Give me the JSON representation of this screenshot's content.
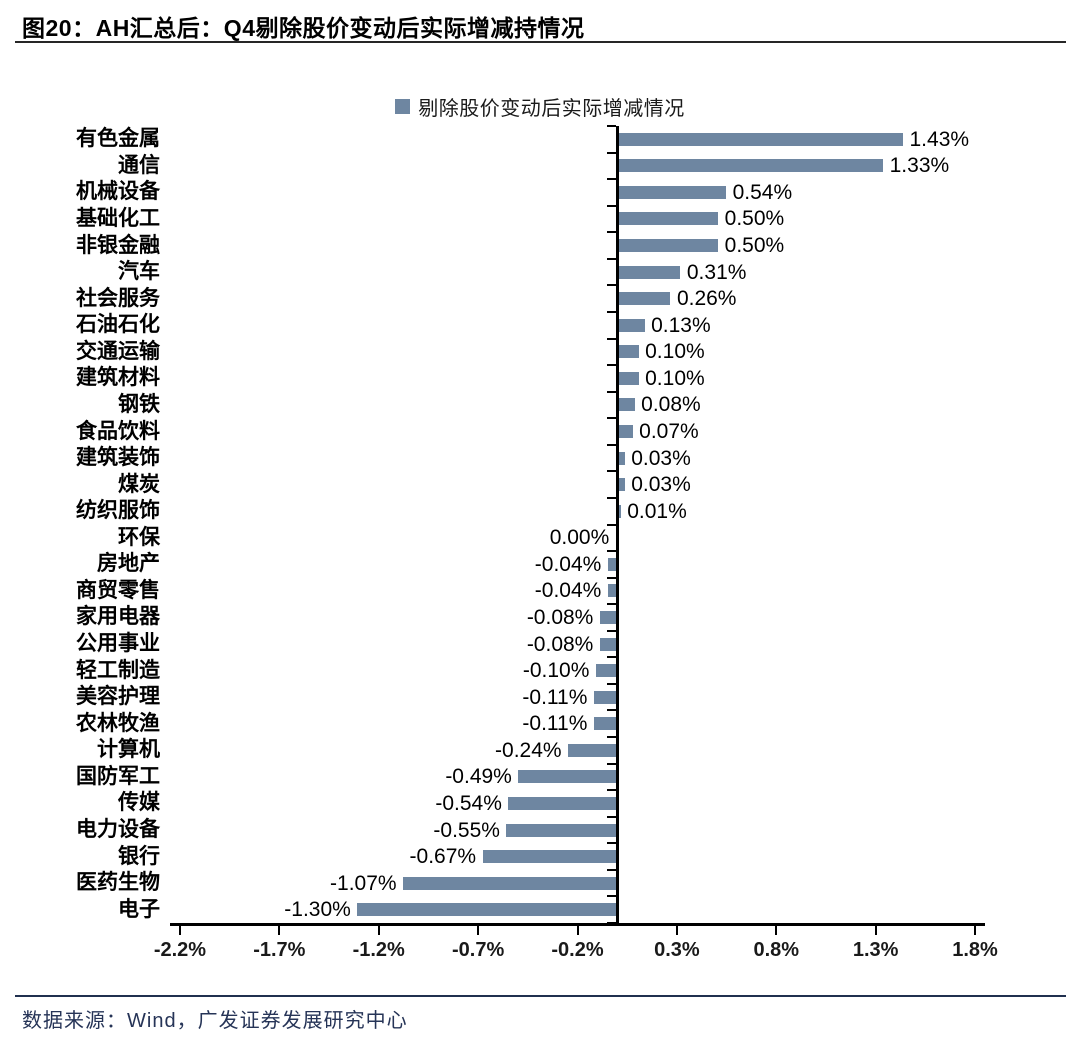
{
  "page": {
    "title": "图20：AH汇总后：Q4剔除股价变动后实际增减持情况",
    "source": "数据来源：Wind，广发证券发展研究中心"
  },
  "chart_data": {
    "type": "bar",
    "orientation": "horizontal",
    "title": "图20：AH汇总后：Q4剔除股价变动后实际增减持情况",
    "legend": [
      "剔除股价变动后实际增减情况"
    ],
    "legend_position": "top-center",
    "bar_color": "#6E86A1",
    "grid": false,
    "categories": [
      "有色金属",
      "通信",
      "机械设备",
      "基础化工",
      "非银金融",
      "汽车",
      "社会服务",
      "石油石化",
      "交通运输",
      "建筑材料",
      "钢铁",
      "食品饮料",
      "建筑装饰",
      "煤炭",
      "纺织服饰",
      "环保",
      "房地产",
      "商贸零售",
      "家用电器",
      "公用事业",
      "轻工制造",
      "美容护理",
      "农林牧渔",
      "计算机",
      "国防军工",
      "传媒",
      "电力设备",
      "银行",
      "医药生物",
      "电子"
    ],
    "values": [
      1.43,
      1.33,
      0.54,
      0.5,
      0.5,
      0.31,
      0.26,
      0.13,
      0.1,
      0.1,
      0.08,
      0.07,
      0.03,
      0.03,
      0.01,
      0.0,
      -0.04,
      -0.04,
      -0.08,
      -0.08,
      -0.1,
      -0.11,
      -0.11,
      -0.24,
      -0.49,
      -0.54,
      -0.55,
      -0.67,
      -1.07,
      -1.3
    ],
    "value_labels": [
      "1.43%",
      "1.33%",
      "0.54%",
      "0.50%",
      "0.50%",
      "0.31%",
      "0.26%",
      "0.13%",
      "0.10%",
      "0.10%",
      "0.08%",
      "0.07%",
      "0.03%",
      "0.03%",
      "0.01%",
      "0.00%",
      "-0.04%",
      "-0.04%",
      "-0.08%",
      "-0.08%",
      "-0.10%",
      "-0.11%",
      "-0.11%",
      "-0.24%",
      "-0.49%",
      "-0.54%",
      "-0.55%",
      "-0.67%",
      "-1.07%",
      "-1.30%"
    ],
    "x_tick_labels": [
      "-2.2%",
      "-1.7%",
      "-1.2%",
      "-0.7%",
      "-0.2%",
      "0.3%",
      "0.8%",
      "1.3%",
      "1.8%"
    ],
    "x_tick_values": [
      -2.2,
      -1.7,
      -1.2,
      -0.7,
      -0.2,
      0.3,
      0.8,
      1.3,
      1.8
    ],
    "xlim": [
      -2.25,
      1.85
    ],
    "unit": "%"
  }
}
